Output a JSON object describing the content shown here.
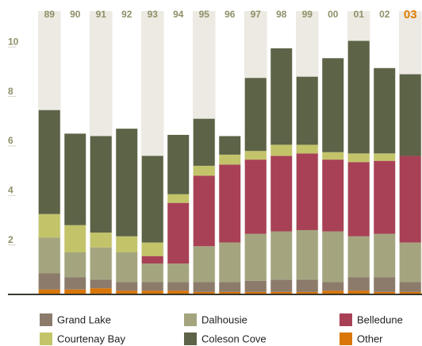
{
  "chart_data": {
    "type": "stacked_bar",
    "categories": [
      "89",
      "90",
      "91",
      "92",
      "93",
      "94",
      "95",
      "96",
      "97",
      "98",
      "99",
      "00",
      "01",
      "02",
      "03"
    ],
    "highlight": "03",
    "highlight_color": "#e07b00",
    "series": [
      {
        "name": "Other",
        "color": "#d9760a",
        "values": [
          0.2,
          0.2,
          0.25,
          0.15,
          0.15,
          0.15,
          0.1,
          0.1,
          0.1,
          0.1,
          0.1,
          0.15,
          0.15,
          0.1,
          0.1
        ]
      },
      {
        "name": "Grand Lake",
        "color": "#8c7b6b",
        "values": [
          0.65,
          0.5,
          0.35,
          0.35,
          0.35,
          0.35,
          0.4,
          0.4,
          0.45,
          0.5,
          0.5,
          0.35,
          0.55,
          0.6,
          0.4
        ]
      },
      {
        "name": "Dalhousie",
        "color": "#a4a57f",
        "values": [
          1.45,
          1.0,
          1.3,
          1.2,
          0.75,
          0.75,
          1.45,
          1.6,
          1.9,
          1.95,
          2.0,
          2.05,
          1.65,
          1.75,
          1.6
        ]
      },
      {
        "name": "Belledune",
        "color": "#a84156",
        "values": [
          0,
          0,
          0,
          0,
          0.3,
          2.45,
          2.85,
          3.15,
          3.0,
          3.05,
          3.1,
          2.9,
          3.0,
          2.95,
          3.5
        ]
      },
      {
        "name": "Courtenay Bay",
        "color": "#c3c46a",
        "values": [
          0.95,
          1.1,
          0.6,
          0.65,
          0.55,
          0.35,
          0.4,
          0.4,
          0.35,
          0.45,
          0.35,
          0.3,
          0.35,
          0.3,
          0
        ]
      },
      {
        "name": "Coleson Cove",
        "color": "#5c6347",
        "values": [
          4.2,
          3.7,
          3.9,
          4.35,
          3.5,
          2.4,
          1.9,
          0.75,
          2.95,
          3.9,
          2.75,
          3.8,
          4.55,
          3.45,
          3.3
        ]
      }
    ],
    "ylim": [
      0,
      11.1
    ],
    "yticks": [
      2,
      4,
      6,
      8,
      10
    ]
  }
}
